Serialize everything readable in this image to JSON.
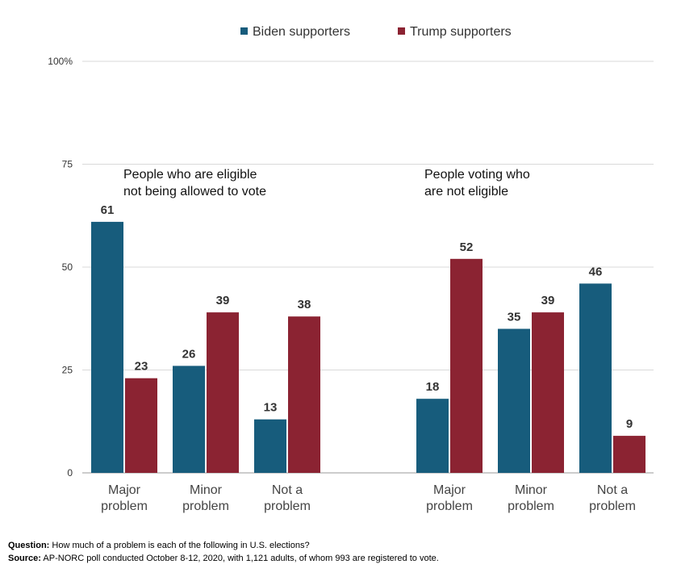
{
  "chart_data": {
    "type": "bar",
    "ylim": [
      0,
      100
    ],
    "yticks": [
      "0",
      "25",
      "50",
      "75",
      "100%"
    ],
    "ytick_values": [
      0,
      25,
      50,
      75,
      100
    ],
    "grid": true,
    "legend_position": "top-center",
    "series": [
      {
        "name": "Biden supporters",
        "color": "#175c7c"
      },
      {
        "name": "Trump supporters",
        "color": "#8b2332"
      }
    ],
    "groups": [
      {
        "title_lines": [
          "People who are eligible",
          "not being allowed to vote"
        ],
        "categories": [
          {
            "label_lines": [
              "Major",
              "problem"
            ],
            "values": [
              61,
              23
            ]
          },
          {
            "label_lines": [
              "Minor",
              "problem"
            ],
            "values": [
              26,
              39
            ]
          },
          {
            "label_lines": [
              "Not a",
              "problem"
            ],
            "values": [
              13,
              38
            ]
          }
        ]
      },
      {
        "title_lines": [
          "People voting who",
          "are not eligible"
        ],
        "categories": [
          {
            "label_lines": [
              "Major",
              "problem"
            ],
            "values": [
              18,
              52
            ]
          },
          {
            "label_lines": [
              "Minor",
              "problem"
            ],
            "values": [
              35,
              39
            ]
          },
          {
            "label_lines": [
              "Not a",
              "problem"
            ],
            "values": [
              46,
              9
            ]
          }
        ]
      }
    ]
  },
  "footnotes": {
    "question_label": "Question:",
    "question_text": " How much of a problem is each of the following in U.S. elections?",
    "source_label": "Source:",
    "source_text": " AP-NORC poll conducted October 8-12, 2020, with 1,121 adults, of whom 993 are registered to vote."
  }
}
